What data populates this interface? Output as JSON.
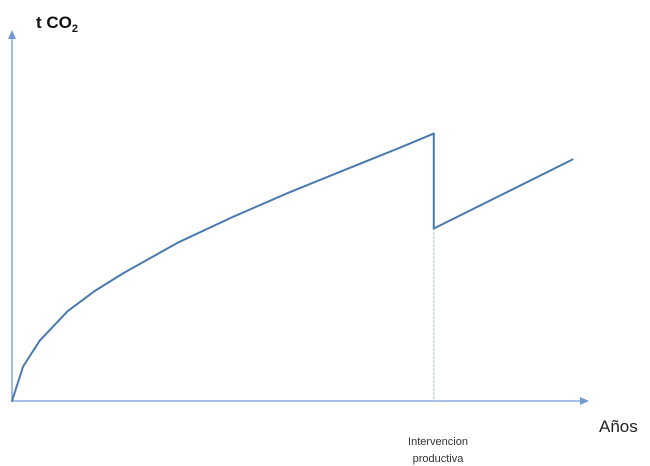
{
  "chart_data": {
    "type": "line",
    "ylabel": "t CO",
    "ylabel_subscript": "2",
    "xlabel": "Años",
    "annotation": {
      "line1": "Intervencion",
      "line2": "productiva"
    },
    "x_tick_labels": false,
    "y_tick_labels": false,
    "grid": false,
    "legend": "none",
    "xlim": [
      0,
      10
    ],
    "ylim": [
      0,
      10
    ],
    "intervention_x": 7.6,
    "series": [
      {
        "color": "#4a79b0",
        "segments": [
          {
            "x": [
              0,
              0.2,
              0.5,
              1.0,
              1.5,
              2.0,
              3.0,
              4.0,
              5.0,
              6.0,
              7.0,
              7.6
            ],
            "y": [
              0,
              1.0,
              1.75,
              2.6,
              3.2,
              3.7,
              4.6,
              5.35,
              6.05,
              6.7,
              7.35,
              7.75
            ]
          },
          {
            "x": [
              7.6,
              7.6
            ],
            "y": [
              7.75,
              5.0
            ]
          },
          {
            "x": [
              7.6,
              10.1
            ],
            "y": [
              5.0,
              7.0
            ]
          }
        ]
      }
    ],
    "axis_color": "#6f9ad6",
    "dashed_line_color": "#9ab6dd"
  }
}
